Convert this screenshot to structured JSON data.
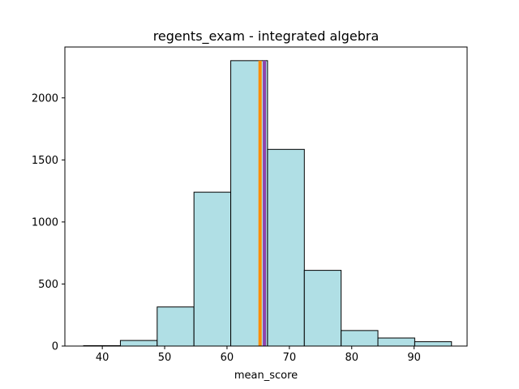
{
  "chart_data": {
    "type": "bar",
    "title": "regents_exam - integrated algebra",
    "xlabel": "mean_score",
    "ylabel": "",
    "xlim": [
      34,
      98.5
    ],
    "ylim": [
      0,
      2410
    ],
    "xticks": [
      "40",
      "50",
      "60",
      "70",
      "80",
      "90"
    ],
    "yticks": [
      "0",
      "500",
      "1000",
      "1500",
      "2000"
    ],
    "bins": [
      {
        "start": 37.0,
        "end": 42.9,
        "value": 3
      },
      {
        "start": 42.9,
        "end": 48.8,
        "value": 45
      },
      {
        "start": 48.8,
        "end": 54.7,
        "value": 315
      },
      {
        "start": 54.7,
        "end": 60.6,
        "value": 1240
      },
      {
        "start": 60.6,
        "end": 66.5,
        "value": 2300
      },
      {
        "start": 66.5,
        "end": 72.4,
        "value": 1585
      },
      {
        "start": 72.4,
        "end": 78.3,
        "value": 610
      },
      {
        "start": 78.3,
        "end": 84.2,
        "value": 125
      },
      {
        "start": 84.2,
        "end": 90.1,
        "value": 65
      },
      {
        "start": 90.1,
        "end": 96.0,
        "value": 35
      }
    ],
    "vlines": [
      {
        "x": 66.0,
        "color": "#8e44ad"
      },
      {
        "x": 65.3,
        "color": "#ff8c00"
      }
    ],
    "grid": false,
    "bar_color": "#b0dfe5",
    "edge_color": "#000000"
  }
}
